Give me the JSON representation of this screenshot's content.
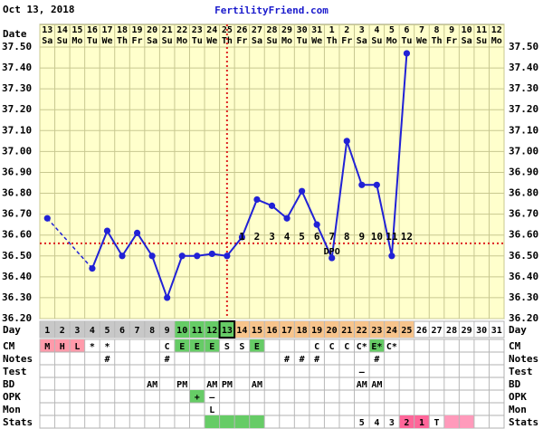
{
  "header": {
    "date": "Oct 13, 2018",
    "site": "FertilityFriend.com"
  },
  "chart_data": {
    "type": "line",
    "date_label": "Date",
    "dates": [
      "13",
      "14",
      "15",
      "16",
      "17",
      "18",
      "19",
      "20",
      "21",
      "22",
      "23",
      "24",
      "25",
      "26",
      "27",
      "28",
      "29",
      "30",
      "31",
      "1",
      "2",
      "3",
      "4",
      "5",
      "6",
      "7",
      "8",
      "9",
      "10",
      "11",
      "12"
    ],
    "weekdays": [
      "Sa",
      "Su",
      "Mo",
      "Tu",
      "We",
      "Th",
      "Fr",
      "Sa",
      "Su",
      "Mo",
      "Tu",
      "We",
      "Th",
      "Fr",
      "Sa",
      "Su",
      "Mo",
      "Tu",
      "We",
      "Th",
      "Fr",
      "Sa",
      "Su",
      "Mo",
      "Tu",
      "We",
      "Th",
      "Fr",
      "Sa",
      "Su",
      "Mo"
    ],
    "ylim": [
      36.2,
      37.5
    ],
    "yticks": [
      {
        "value": 36.2,
        "label": "36.20"
      },
      {
        "value": 36.3,
        "label": "36.30"
      },
      {
        "value": 36.4,
        "label": "36.40"
      },
      {
        "value": 36.5,
        "label": "36.50"
      },
      {
        "value": 36.6,
        "label": "36.60"
      },
      {
        "value": 36.7,
        "label": "36.70"
      },
      {
        "value": 36.8,
        "label": "36.80"
      },
      {
        "value": 36.9,
        "label": "36.90"
      },
      {
        "value": 37.0,
        "label": "37.00"
      },
      {
        "value": 37.1,
        "label": "37.10"
      },
      {
        "value": 37.2,
        "label": "37.20"
      },
      {
        "value": 37.3,
        "label": "37.30"
      },
      {
        "value": 37.4,
        "label": "37.40"
      },
      {
        "value": 37.5,
        "label": "37.50"
      }
    ],
    "grid": true,
    "series": [
      {
        "color": "#2121d6",
        "values": [
          36.68,
          null,
          null,
          36.44,
          36.62,
          36.5,
          36.61,
          36.5,
          36.3,
          36.5,
          36.5,
          36.51,
          36.5,
          36.59,
          36.77,
          36.74,
          36.68,
          36.81,
          36.65,
          36.49,
          37.05,
          36.84,
          36.84,
          36.5,
          37.47,
          null,
          null,
          null,
          null,
          null,
          null
        ]
      }
    ],
    "coverline": 36.56,
    "coverline_color": "#dd2222",
    "ovulation_day": 13,
    "dpo": [
      null,
      null,
      null,
      null,
      null,
      null,
      null,
      null,
      null,
      null,
      null,
      null,
      null,
      "1",
      "2",
      "3",
      "4",
      "5",
      "6",
      "7",
      "8",
      "9",
      "10",
      "11",
      "12",
      null,
      null,
      null,
      null,
      null,
      null
    ],
    "dpo_label": "DPO"
  },
  "table": {
    "rows": [
      {
        "label": "Day",
        "cells": [
          1,
          2,
          3,
          4,
          5,
          6,
          7,
          8,
          9,
          10,
          11,
          12,
          13,
          14,
          15,
          16,
          17,
          18,
          19,
          20,
          21,
          22,
          23,
          24,
          25,
          26,
          27,
          28,
          29,
          30,
          31
        ],
        "colors": [
          "#c8c8c8",
          "#c8c8c8",
          "#c8c8c8",
          "#c8c8c8",
          "#c8c8c8",
          "#c8c8c8",
          "#c8c8c8",
          "#c8c8c8",
          "#c8c8c8",
          "#66cc66",
          "#66cc66",
          "#66cc66",
          "#66cc66",
          "#f7c48c",
          "#f7c48c",
          "#f7c48c",
          "#f7c48c",
          "#f7c48c",
          "#f7c48c",
          "#f7c48c",
          "#f7c48c",
          "#f7c48c",
          "#f7c48c",
          "#f7c48c",
          "#f7c48c",
          null,
          null,
          null,
          null,
          null,
          null
        ]
      },
      {
        "label": "CM",
        "cells": [
          "M",
          "H",
          "L",
          "*",
          "*",
          null,
          null,
          null,
          "C",
          "E",
          "E",
          "E",
          "S",
          "S",
          "E",
          null,
          null,
          null,
          "C",
          "C",
          "C",
          "C*",
          "E*",
          "C*",
          null,
          null,
          null,
          null,
          null,
          null,
          null
        ],
        "colors": [
          "#ff9aaa",
          "#ff9aaa",
          "#ff9aaa",
          null,
          null,
          null,
          null,
          null,
          null,
          "#66cc66",
          "#66cc66",
          "#66cc66",
          null,
          null,
          "#66cc66",
          null,
          null,
          null,
          null,
          null,
          null,
          null,
          "#66cc66",
          null,
          null,
          null,
          null,
          null,
          null,
          null,
          null
        ]
      },
      {
        "label": "Notes",
        "cells": [
          null,
          null,
          null,
          null,
          "#",
          null,
          null,
          null,
          "#",
          null,
          null,
          null,
          null,
          null,
          null,
          null,
          "#",
          "#",
          "#",
          null,
          null,
          null,
          "#",
          null,
          null,
          null,
          null,
          null,
          null,
          null,
          null
        ],
        "colors": []
      },
      {
        "label": "Test",
        "cells": [
          null,
          null,
          null,
          null,
          null,
          null,
          null,
          null,
          null,
          null,
          null,
          null,
          null,
          null,
          null,
          null,
          null,
          null,
          null,
          null,
          null,
          "–",
          null,
          null,
          null,
          null,
          null,
          null,
          null,
          null,
          null
        ],
        "colors": []
      },
      {
        "label": "BD",
        "cells": [
          null,
          null,
          null,
          null,
          null,
          null,
          null,
          "AM",
          null,
          "PM",
          null,
          "AM",
          "PM",
          null,
          "AM",
          null,
          null,
          null,
          null,
          null,
          null,
          "AM",
          "AM",
          null,
          null,
          null,
          null,
          null,
          null,
          null,
          null
        ],
        "colors": []
      },
      {
        "label": "OPK",
        "cells": [
          null,
          null,
          null,
          null,
          null,
          null,
          null,
          null,
          null,
          null,
          "+",
          "–",
          null,
          null,
          null,
          null,
          null,
          null,
          null,
          null,
          null,
          null,
          null,
          null,
          null,
          null,
          null,
          null,
          null,
          null,
          null
        ],
        "colors": [
          null,
          null,
          null,
          null,
          null,
          null,
          null,
          null,
          null,
          null,
          "#66cc66"
        ]
      },
      {
        "label": "Mon",
        "cells": [
          null,
          null,
          null,
          null,
          null,
          null,
          null,
          null,
          null,
          null,
          null,
          "L",
          null,
          null,
          null,
          null,
          null,
          null,
          null,
          null,
          null,
          null,
          null,
          null,
          null,
          null,
          null,
          null,
          null,
          null,
          null
        ],
        "colors": []
      },
      {
        "label": "Stats",
        "cells": [
          null,
          null,
          null,
          null,
          null,
          null,
          null,
          null,
          null,
          null,
          null,
          null,
          null,
          null,
          null,
          null,
          null,
          null,
          null,
          null,
          null,
          "5",
          "4",
          "3",
          "2",
          "1",
          "T",
          null,
          null,
          null,
          null
        ],
        "colors": [
          null,
          null,
          null,
          null,
          null,
          null,
          null,
          null,
          null,
          null,
          null,
          "#66cc66",
          "#66cc66",
          "#66cc66",
          "#66cc66",
          null,
          null,
          null,
          null,
          null,
          null,
          null,
          null,
          null,
          "#ff6699",
          "#ff6699",
          null,
          "#ff9abb",
          "#ff9abb"
        ]
      }
    ]
  }
}
